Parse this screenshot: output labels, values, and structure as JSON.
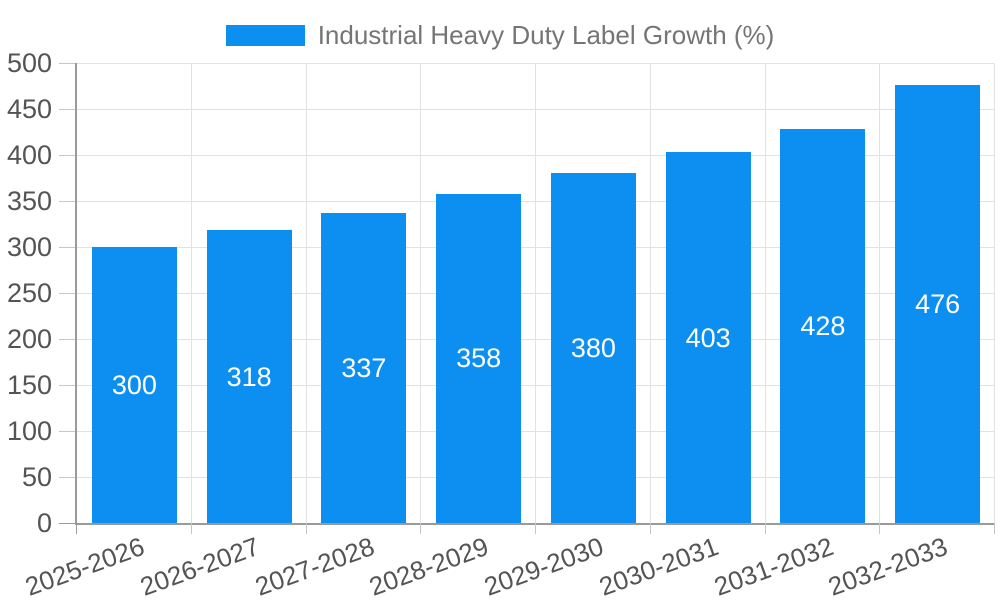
{
  "chart_data": {
    "type": "bar",
    "legend": "Industrial Heavy Duty Label Growth (%)",
    "legend_position": "top",
    "categories": [
      "2025-2026",
      "2026-2027",
      "2027-2028",
      "2028-2029",
      "2029-2030",
      "2030-2031",
      "2031-2032",
      "2032-2033"
    ],
    "values": [
      300,
      318,
      337,
      358,
      380,
      403,
      428,
      476
    ],
    "yticks": [
      0,
      50,
      100,
      150,
      200,
      250,
      300,
      350,
      400,
      450,
      500
    ],
    "ylim": [
      0,
      500
    ],
    "grid": true,
    "bar_labels_inside": true,
    "colors": {
      "bar": "#0d8ff2",
      "grid": "#e2e2e2",
      "axis": "#9a9a9a",
      "tick_label": "#545454",
      "legend_text": "#757575",
      "bar_label": "#ffffff"
    }
  }
}
